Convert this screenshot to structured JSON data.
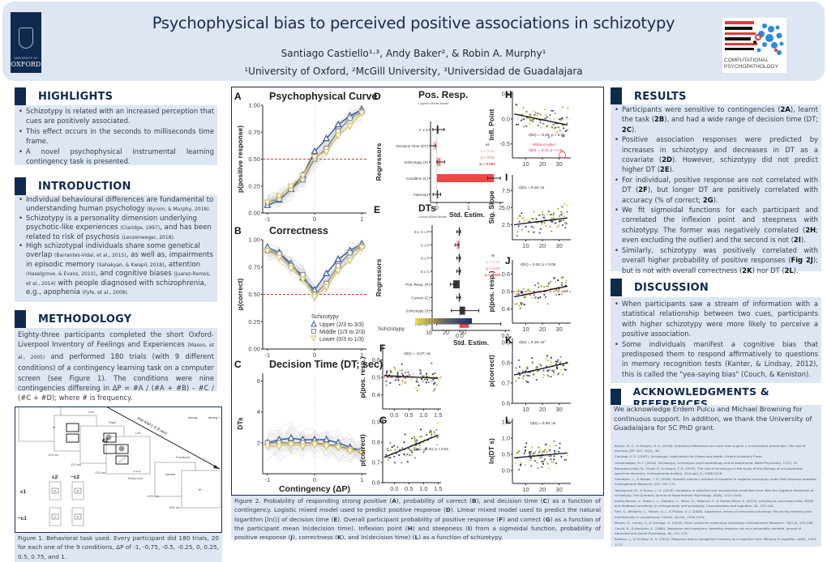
{
  "header": {
    "title": "Psychophysical bias to perceived positive associations in schizotypy",
    "authors": "Santiago Castiello¹·³, Andy Baker², & Robin A. Murphy¹",
    "affiliations": "¹University of Oxford, ²McGill University, ³Universidad de Guadalajara",
    "left_logo": {
      "line1": "UNIVERSITY OF",
      "line2": "OXFORD"
    },
    "right_logo": {
      "line1": "COMPUTATIONAL",
      "line2": "PSYCHOPATHOLOGY"
    }
  },
  "highlights": {
    "heading": "HIGHLIGHTS",
    "items": [
      "Schizotypy is related with an increased perception that cues are positively associated.",
      "This effect occurs in the seconds to milliseconds time frame.",
      "A novel psychophysical instrumental learning contingency task is presented."
    ]
  },
  "introduction": {
    "heading": "INTRODUCTION",
    "items": [
      {
        "text": "Individual behavioural differences are fundamental to understanding human psychology ",
        "cite": "(Byrom, & Murphy, 2018)."
      },
      {
        "text": "Schizotypy is a personality dimension underlying psychotic-like experiences ",
        "cite": "(Claridge, 1997)",
        "text2": ", and has been related to risk of psychosis ",
        "cite2": "(Lenzenweger, 2018)."
      },
      {
        "text": "High schizotypal individuals share some genetical overlap ",
        "cite": "(Barrantes-Vidal, et al., 2015)",
        "text2": ", as well as, impairments in episodic memory ",
        "cite2": "(Sahakyan, & Kwapil, 2018)",
        "text3": ", attention ",
        "cite3": "(Haselgrove, & Evans, 2010)",
        "text4": ", and cognitive biases ",
        "cite4": "(Juarez-Ramos, et al., 2014)",
        "text5": " with people diagnosed with schizophrenia, e.g., apophenia ",
        "cite5": "(Fyfe, et al., 2008)."
      }
    ]
  },
  "methodology": {
    "heading": "METHODOLOGY",
    "text1": "Eighty-three participants completed the short Oxford-Liverpool Inventory of Feelings and Experiences ",
    "cite": "(Mason, et al., 2005)",
    "text2": " and performed 180 trials (with 9 different conditions) of a contingency learning task on a computer screen (see Figure 1). The conditions were nine contingencies differeing in ΔP = #A / (#A + #B) – #C / (#C + #D); where # is frequency."
  },
  "figure1": {
    "labels": {
      "left1": "Left",
      "right": "Right",
      "left2": "Left",
      "t1": "125 ms",
      "t2": "125 ms",
      "t3": "125 ms",
      "dots": "• • •",
      "response": "Response",
      "feedback": "Feedback",
      "correct": "correct",
      "t4": "1000 ms",
      "t5": "500 ms",
      "one_trial": "one trial (~2.8 sec)",
      "strong_minus": "strong -",
      "strong_plus": "strong +",
      "c2": "c2",
      "nc2": "~c2",
      "c1": "c1",
      "nc1": "~c1",
      "A": "A",
      "B": "B",
      "C": "C",
      "D": "D",
      "fix": "+"
    },
    "caption": "Figure 1. Behavioral task used. Every participant did 180 trials, 20 for each one of the 9 conditions, ΔP of -1, -0.75, -0.5, -0.25, 0, 0.25, 0.5, 0.75, and 1."
  },
  "figure2": {
    "caption": {
      "p1": "Figure 2. Probability of responding strong positive (",
      "b1": "A",
      "p2": "), probability of correct (",
      "b2": "B",
      "p3": "), and decision time (",
      "b3": "C",
      "p4": ") as a function of contingency. Logistic mixed model used to predict positive response (",
      "b4": "D",
      "p5": "). Linear mixed model used to predict the natural logarithm [ln()] of decision time (",
      "b5": "E",
      "p6": "). Overall participant probability of positive response (",
      "b6": "F",
      "p7": ") and correct (",
      "b7": "G",
      "p8": ") as a function of the participant mean ln(decision time). Inflexion point (",
      "b8": "H",
      "p9": ") and steepness (",
      "b9": "I",
      "p10": ") from a sigmoidal function, probability of positive response (",
      "b10": "J",
      "p11": "), correctness (",
      "b11": "K",
      "p12": "), and ln(decision time) (",
      "b12": "L",
      "p13": ") as a function of schizotypy."
    }
  },
  "chart_data": [
    {
      "id": "A",
      "type": "line",
      "title": "Psychophysical Curve",
      "xlabel": "",
      "ylabel": "p(positive response)",
      "x": [
        -1,
        -0.75,
        -0.5,
        -0.25,
        0,
        0.25,
        0.5,
        0.75,
        1
      ],
      "xticks": [
        "-1",
        "0",
        "1"
      ],
      "yticks": [
        "0.00",
        "0.25",
        "0.50",
        "0.75",
        "1.00"
      ],
      "ylim": [
        0,
        1
      ],
      "xlim": [
        -1.1,
        1.1
      ],
      "hline": 0.5,
      "series": [
        {
          "name": "Upper (2/3 to 3/3)",
          "color": "#3a5a9a",
          "marker": "triangle-up",
          "values": [
            0.07,
            0.12,
            0.22,
            0.35,
            0.57,
            0.69,
            0.82,
            0.9,
            0.96
          ]
        },
        {
          "name": "Middle (1/3 to 2/3)",
          "color": "#8a8a8a",
          "marker": "square",
          "values": [
            0.1,
            0.13,
            0.22,
            0.31,
            0.5,
            0.6,
            0.76,
            0.88,
            0.94
          ]
        },
        {
          "name": "Lower (0/3 to 1/3)",
          "color": "#d9c56a",
          "marker": "triangle-down",
          "values": [
            0.1,
            0.16,
            0.25,
            0.35,
            0.52,
            0.57,
            0.72,
            0.81,
            0.93
          ]
        }
      ]
    },
    {
      "id": "B",
      "type": "line",
      "title": "Correctness",
      "xlabel": "",
      "ylabel": "p(correct)",
      "x": [
        -1,
        -0.75,
        -0.5,
        -0.25,
        0,
        0.25,
        0.5,
        0.75,
        1
      ],
      "xticks": [
        "-1",
        "0",
        "1"
      ],
      "yticks": [
        "0.00",
        "0.25",
        "0.50",
        "0.75",
        "1.00"
      ],
      "ylim": [
        0,
        1
      ],
      "xlim": [
        -1.1,
        1.1
      ],
      "hline": 0.5,
      "legend": {
        "title": "Schizotypy",
        "position": "bottom-right"
      },
      "series": [
        {
          "name": "Upper (2/3 to 3/3)",
          "color": "#3a5a9a",
          "marker": "triangle-up",
          "values": [
            0.93,
            0.88,
            0.78,
            0.65,
            0.54,
            0.69,
            0.82,
            0.9,
            0.96
          ]
        },
        {
          "name": "Middle (1/3 to 2/3)",
          "color": "#8a8a8a",
          "marker": "square",
          "values": [
            0.9,
            0.87,
            0.76,
            0.68,
            0.5,
            0.6,
            0.76,
            0.88,
            0.94
          ]
        },
        {
          "name": "Lower (0/3 to 1/3)",
          "color": "#d9c56a",
          "marker": "triangle-down",
          "values": [
            0.9,
            0.84,
            0.74,
            0.64,
            0.48,
            0.57,
            0.72,
            0.81,
            0.93
          ]
        }
      ]
    },
    {
      "id": "C",
      "type": "line",
      "title": "Decision Time (DT; sec)",
      "xlabel": "Contingency (ΔP)",
      "ylabel": "DTs",
      "x": [
        -1,
        -0.75,
        -0.5,
        -0.25,
        0,
        0.25,
        0.5,
        0.75,
        1
      ],
      "xticks": [
        "-1",
        "0",
        "1"
      ],
      "yticks": [
        "2",
        "4",
        "6"
      ],
      "ylim": [
        0,
        6.5
      ],
      "xlim": [
        -1.1,
        1.1
      ],
      "series": [
        {
          "name": "Upper (2/3 to 3/3)",
          "color": "#3a5a9a",
          "marker": "triangle-up",
          "values": [
            2.0,
            2.2,
            2.3,
            2.2,
            2.2,
            2.2,
            2.0,
            1.7,
            1.5
          ]
        },
        {
          "name": "Middle (1/3 to 2/3)",
          "color": "#8a8a8a",
          "marker": "square",
          "values": [
            2.0,
            2.0,
            2.0,
            2.0,
            2.0,
            1.9,
            1.8,
            1.6,
            1.5
          ]
        },
        {
          "name": "Lower (0/3 to 1/3)",
          "color": "#d9c56a",
          "marker": "triangle-down",
          "values": [
            1.8,
            1.8,
            1.9,
            1.8,
            1.9,
            1.8,
            1.7,
            1.5,
            1.4
          ]
        }
      ]
    },
    {
      "id": "D",
      "type": "bar",
      "title": "Pos. Resp.",
      "subtitle": "Logistic Mixed Model",
      "xlabel": "Std. Estim.",
      "ylabel": "Regressors",
      "xlim": [
        -0.2,
        2.1
      ],
      "xticks": [
        "0",
        "1",
        "2"
      ],
      "categories": [
        "C x S",
        "Decision Time (DT)",
        "Schizotypy (S)",
        "Condition (C)",
        "Intercept"
      ],
      "values": [
        0.05,
        -0.12,
        0.12,
        1.8,
        0.0
      ],
      "errors": [
        0.18,
        0.08,
        0.12,
        0.2,
        0.12
      ],
      "sig": [
        "ns",
        "p < 0.05",
        "p < 0.01",
        "p < 0.001",
        "ns"
      ],
      "sig_legend": [
        "ns",
        "p < 0.05",
        "p < 0.01",
        "p < 0.001"
      ],
      "sig_colors": [
        "#222222",
        "#f6b8b8",
        "#f07f7f",
        "#ee3333"
      ]
    },
    {
      "id": "E",
      "type": "bar",
      "title": "DTs",
      "subtitle": "Linear Mixed Model",
      "xlabel": "Std. Estim.",
      "ylabel": "Regressors",
      "xlim": [
        -0.3,
        0.55
      ],
      "xticks": [
        "0.0",
        "0.5"
      ],
      "categories": [
        "S x C x P",
        "C x P",
        "S x P",
        "S x C",
        "Pos. Resp. (P)",
        "Correct (C)",
        "Schizotypy (S)",
        "Intercept"
      ],
      "values": [
        -0.01,
        -0.03,
        -0.01,
        -0.01,
        -0.07,
        -0.01,
        0.06,
        0.1
      ],
      "errors": [
        0.02,
        0.02,
        0.02,
        0.02,
        0.03,
        0.02,
        0.15,
        0.35
      ],
      "sig": [
        "ns",
        "p < 0.01",
        "ns",
        "ns",
        "ns",
        "ns",
        "ns",
        "p < 0.001"
      ],
      "sig_legend": [
        "ns",
        "p < 0.05",
        "p < 0.01",
        "p < 0.001"
      ],
      "sig_colors": [
        "#222222",
        "#f6b8b8",
        "#f07f7f",
        "#ee3333"
      ],
      "colorbar": {
        "label": "Schizotypy",
        "ticks": [
          "10",
          "20",
          "30"
        ],
        "from": "#f2dc3a",
        "to": "#14306e"
      }
    },
    {
      "id": "F",
      "type": "scatter",
      "xlabel": "",
      "ylabel": "p(pos. resp.)",
      "xticks": [
        "0.0",
        "0.5",
        "1.0",
        "1.5"
      ],
      "yticks": [
        "0.4",
        "0.5",
        "0.6"
      ],
      "xlim": [
        -0.4,
        1.6
      ],
      "ylim": [
        0.32,
        0.68
      ],
      "annotation": "r(81) = -0.07; ns",
      "hline": 0.5,
      "fit": [
        [
          -0.35,
          0.51
        ],
        [
          1.5,
          0.495
        ]
      ]
    },
    {
      "id": "G",
      "type": "scatter",
      "xlabel": "ln(DT s)",
      "ylabel": "p(correct)",
      "xticks": [
        "0.0",
        "0.5",
        "1.0",
        "1.5"
      ],
      "yticks": [
        "0.6",
        "0.7",
        "0.8",
        "0.9"
      ],
      "xlim": [
        -0.4,
        1.6
      ],
      "ylim": [
        0.6,
        0.92
      ],
      "annotation": "r(81) = 0.34; p < 0.01",
      "fit": [
        [
          -0.35,
          0.725
        ],
        [
          1.5,
          0.835
        ]
      ]
    },
    {
      "id": "H",
      "type": "scatter",
      "xlabel": "",
      "ylabel": "Infl. Point",
      "xticks": [
        "10",
        "20",
        "30"
      ],
      "yticks": [
        "-0.5",
        "0.0",
        "0.5"
      ],
      "xlim": [
        2,
        37
      ],
      "ylim": [
        -0.78,
        0.55
      ],
      "annotation": "r(81) = -0.26; p < 0.05",
      "annotation2": "Without outlier:",
      "annotation3": "r(80) = -0.23; p < 0.05",
      "hline": 0,
      "fit": [
        [
          3,
          0.1
        ],
        [
          35,
          -0.12
        ]
      ]
    },
    {
      "id": "I",
      "type": "scatter",
      "xlabel": "",
      "ylabel": "Sig. Slope",
      "xticks": [
        "10",
        "20",
        "30"
      ],
      "yticks": [
        "2.5",
        "5.0",
        "7.5"
      ],
      "xlim": [
        2,
        37
      ],
      "ylim": [
        0.3,
        9.8
      ],
      "annotation": "r(81) = 0.16; ns",
      "fit": [
        [
          3,
          2.5
        ],
        [
          35,
          3.5
        ]
      ]
    },
    {
      "id": "J",
      "type": "scatter",
      "xlabel": "",
      "ylabel": "p(pos. resp.)",
      "xticks": [
        "10",
        "20",
        "30"
      ],
      "yticks": [
        "0.4",
        "0.5",
        "0.6"
      ],
      "xlim": [
        2,
        37
      ],
      "ylim": [
        0.32,
        0.68
      ],
      "annotation": "r(81) = 0.26; p < 0.05",
      "hline": 0.5,
      "fit": [
        [
          3,
          0.47
        ],
        [
          35,
          0.53
        ]
      ]
    },
    {
      "id": "K",
      "type": "scatter",
      "xlabel": "",
      "ylabel": "p(correct)",
      "xticks": [
        "10",
        "20",
        "30"
      ],
      "yticks": [
        "0.6",
        "0.7",
        "0.8",
        "0.9"
      ],
      "xlim": [
        2,
        37
      ],
      "ylim": [
        0.6,
        0.92
      ],
      "annotation": "r(81) = 0.19; ns°",
      "fit": [
        [
          3,
          0.74
        ],
        [
          35,
          0.8
        ]
      ]
    },
    {
      "id": "L",
      "type": "scatter",
      "xlabel": "Schizotypy",
      "ylabel": "ln(DT s)",
      "xticks": [
        "10",
        "20",
        "30"
      ],
      "yticks": [
        "0.0",
        "0.5",
        "1.0",
        "1.5"
      ],
      "xlim": [
        2,
        37
      ],
      "ylim": [
        -0.4,
        1.6
      ],
      "annotation": "r(81) = 0.09; ns",
      "fit": [
        [
          3,
          0.39
        ],
        [
          35,
          0.54
        ]
      ]
    }
  ],
  "results": {
    "heading": "RESULTS",
    "items": [
      [
        {
          "t": "Participants were sensitive to contingencies ("
        },
        {
          "b": "2A"
        },
        {
          "t": "), learnt the task ("
        },
        {
          "b": "2B"
        },
        {
          "t": "), and had a wide range of decision time (DT; "
        },
        {
          "b": "2C"
        },
        {
          "t": ")."
        }
      ],
      [
        {
          "t": "Positive association responses were predicted by increases in schizotypy and decreases in DT as a covariate ("
        },
        {
          "b": "2D"
        },
        {
          "t": "). However, schizotypy did not predict higher DT ("
        },
        {
          "b": "2E"
        },
        {
          "t": ")."
        }
      ],
      [
        {
          "t": "For individual, positive response are not correlated with DT ("
        },
        {
          "b": "2F"
        },
        {
          "t": "), but longer DT are positively correlated with accuracy (% of correct; "
        },
        {
          "b": "2G"
        },
        {
          "t": ")."
        }
      ],
      [
        {
          "t": "We fit sigmoidal functions for each participant and correlated the inflexion point and steepness with schizotypy. The former was negatively correlated ("
        },
        {
          "b": "2H"
        },
        {
          "t": "; even excluding the outlier) and the second is not ("
        },
        {
          "b": "2I"
        },
        {
          "t": ")."
        }
      ],
      [
        {
          "t": "Similarly, schizotypy was positively correlated with overall higher probability of positive responses ("
        },
        {
          "b": "Fig 2J"
        },
        {
          "t": "); but is not with overall correctness ("
        },
        {
          "b": "2K"
        },
        {
          "t": ") nor DT ("
        },
        {
          "b": "2L"
        },
        {
          "t": ")."
        }
      ]
    ]
  },
  "discussion": {
    "heading": "DISCUSSION",
    "items": [
      "When participants saw a stream of information with a statistical relationship between two cues, participants with higher schizotypy were more likely to perceive a positive association.",
      "Some individuals manifest a cognitive bias that predisposed them to respond affirmatively to questions in memory recognition tests (Kanter, & Lindsay, 2012), this is called the \"yea-saying bias\" (Couch, & Keniston)."
    ]
  },
  "acknowledgments": {
    "heading": "ACKNOWLEDGMENTS & REFERENCES",
    "text": "We acknowledge Erdem Pulcu and Michael Browning for continuous support. In addition, we thank the University of Guadalajara for SC PhD grant.",
    "references": [
      "Byrom, N. C., & Murphy, R. A. (2018). Individual differences are more than a gene × environment interaction: The role of learning. JEP: ALC, 44(1), 36.",
      "Claridge, G. E. (1997). Schizotypy: Implications for illness and health. Oxford University Press.",
      "Lenzenweger, M. F. (2018). Schizotypy, schizotypic psychopathology and schizophrenia. World Psychiatry, 17(1), 25.",
      "Barrantes-Vidal, N., Grant, P., & Kwapil, T. R. (2015). The role of schizotypy in the study of the etiology of schizophrenia spectrum disorders. Schizophrenia bulletin, 41(suppl_2), S408-S416.",
      "Sahakyan, L., & Kwapil, T. R. (2018). Episodic memory retrieval is impaired in negative schizotypy under fast response deadline. Schizophrenia Research, 201, 167-171.",
      "Haselgrove, M., & Evans, L. H. (2010). Variations in selective and nonselective prediction error with the negative dimension of schizotypy. The Quarterly Journal of Experimental Psychology, 63(6), 1127-1149.",
      "Juarez-Ramos, V., Rubio, J. L., Delpero, C., Mioni, G., Stablum, F., & Gomez-Milan, E. (2014). Jumping to conclusions bias, BADE and feedback sensitivity in schizophrenia and schizotypy. Consciousness and cognition, 26, 133-144.",
      "Fyfe, S., Williams, C., Mason, O. J., & Pickup, G. J. (2008). Apophenia, theory of mind and schizotypy: Perceiving meaning and intentionality in randomness. Cortex, 44(10), 1316-1325.",
      "Mason, O., Linney, Y., & Claridge, G. (2005). Short scales for measuring schizotypy. Schizophrenia Research, 78(2-3), 293-296.",
      "Couch, A., & Keniston, K. (1960). Yeasayers and naysayers: Agreeing response set as a personality variable. Journal of Abnormal and Social Psychology, 60, 151-174.",
      "Kantner, J., & Lindsay, D. S. (2012). Response bias in recognition memory as a cognitive trait. Memory & cognition, 40(8), 1163-1177."
    ]
  }
}
